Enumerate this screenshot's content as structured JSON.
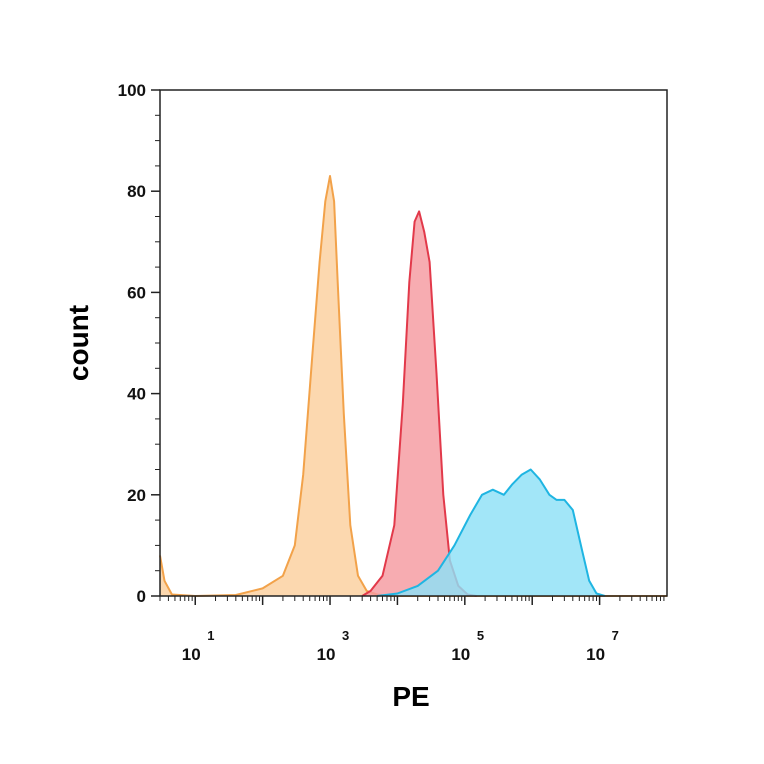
{
  "chart_data": {
    "type": "area",
    "xlabel": "PE",
    "ylabel": "count",
    "x_scale": "log",
    "xlim": [
      3,
      100000000
    ],
    "ylim": [
      0,
      100
    ],
    "x_ticks": [
      {
        "base": "10",
        "exp": "1",
        "value": 10
      },
      {
        "base": "10",
        "exp": "3",
        "value": 1000
      },
      {
        "base": "10",
        "exp": "5",
        "value": 100000
      },
      {
        "base": "10",
        "exp": "7",
        "value": 10000000
      }
    ],
    "y_ticks": [
      {
        "label": "0",
        "value": 0
      },
      {
        "label": "20",
        "value": 20
      },
      {
        "label": "40",
        "value": 40
      },
      {
        "label": "60",
        "value": 60
      },
      {
        "label": "80",
        "value": 80
      },
      {
        "label": "100",
        "value": 100
      }
    ],
    "grid": false,
    "series": [
      {
        "color": "#f2a24a",
        "fill": "#fbcf9e",
        "points": [
          [
            3,
            8
          ],
          [
            3.5,
            3
          ],
          [
            4.5,
            0.3
          ],
          [
            10,
            0
          ],
          [
            40,
            0.2
          ],
          [
            100,
            1.5
          ],
          [
            200,
            4
          ],
          [
            300,
            10
          ],
          [
            400,
            24
          ],
          [
            550,
            48
          ],
          [
            700,
            66
          ],
          [
            850,
            78
          ],
          [
            1000,
            83
          ],
          [
            1150,
            78
          ],
          [
            1300,
            62
          ],
          [
            1600,
            36
          ],
          [
            2000,
            14
          ],
          [
            2600,
            4
          ],
          [
            3500,
            1
          ],
          [
            5000,
            0.3
          ],
          [
            8000,
            0
          ],
          [
            100000000,
            0
          ]
        ]
      },
      {
        "color": "#e2394a",
        "fill": "#f59aa0",
        "points": [
          [
            3000,
            0
          ],
          [
            4000,
            1
          ],
          [
            6000,
            4
          ],
          [
            9000,
            14
          ],
          [
            12000,
            38
          ],
          [
            15000,
            62
          ],
          [
            18000,
            74
          ],
          [
            21000,
            76
          ],
          [
            25000,
            72
          ],
          [
            30000,
            66
          ],
          [
            38000,
            44
          ],
          [
            48000,
            20
          ],
          [
            60000,
            7
          ],
          [
            80000,
            2
          ],
          [
            110000,
            0.3
          ],
          [
            150000,
            0
          ]
        ]
      },
      {
        "color": "#1fb5e2",
        "fill": "#8ee1f6",
        "points": [
          [
            5000,
            0
          ],
          [
            10000,
            0.5
          ],
          [
            20000,
            2
          ],
          [
            40000,
            5
          ],
          [
            70000,
            10
          ],
          [
            120000,
            16
          ],
          [
            180000,
            20
          ],
          [
            260000,
            21
          ],
          [
            380000,
            20
          ],
          [
            500000,
            22
          ],
          [
            700000,
            24
          ],
          [
            950000,
            25
          ],
          [
            1300000,
            23
          ],
          [
            1800000,
            20
          ],
          [
            2300000,
            19
          ],
          [
            3000000,
            19
          ],
          [
            4000000,
            17
          ],
          [
            5500000,
            9
          ],
          [
            7000000,
            3
          ],
          [
            9000000,
            0.5
          ],
          [
            12000000,
            0
          ]
        ]
      }
    ]
  }
}
